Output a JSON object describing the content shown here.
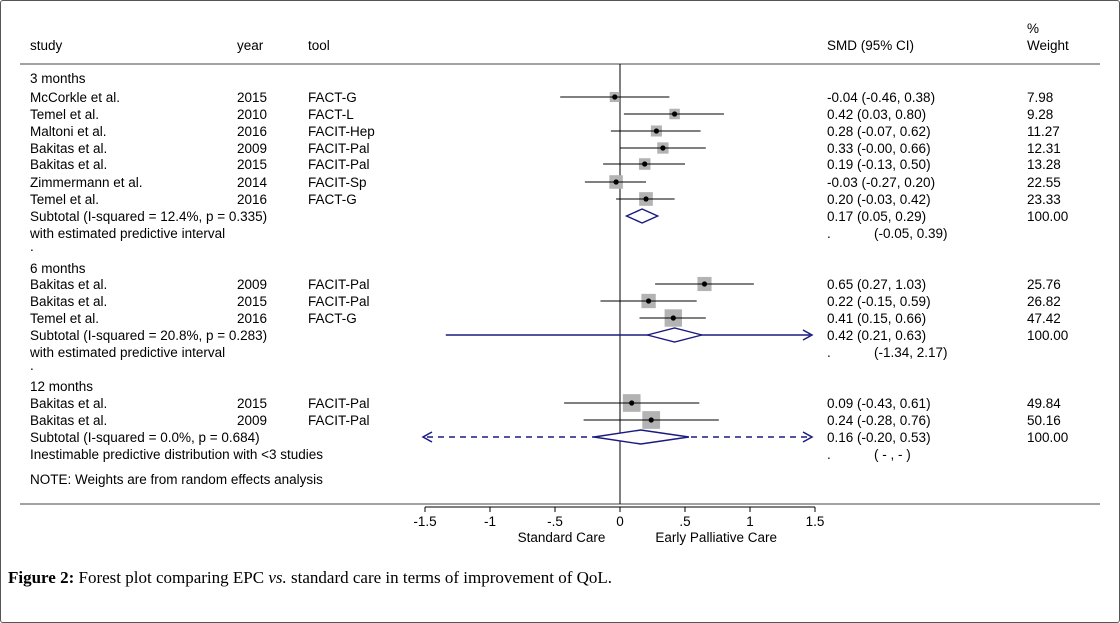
{
  "header": {
    "study": "study",
    "year": "year",
    "tool": "tool",
    "smd": "SMD (95% CI)",
    "weight_top": "%",
    "weight_bottom": "Weight"
  },
  "chart_data": {
    "type": "forest",
    "xlim": [
      -1.5,
      1.5
    ],
    "xticks": [
      "-1.5",
      "-1",
      "-.5",
      "0",
      ".5",
      "1",
      "1.5"
    ],
    "xtick_values": [
      -1.5,
      -1,
      -0.5,
      0,
      0.5,
      1,
      1.5
    ],
    "xlabel_left": "Standard Care",
    "xlabel_right": "Early Palliative Care",
    "note": "NOTE: Weights are from random effects analysis",
    "colors": {
      "study": "#000000",
      "box": "#b3b3b3",
      "pooled": "#1a1a80"
    },
    "rows": [
      {
        "kind": "header",
        "text": "3 months"
      },
      {
        "kind": "study",
        "study": "McCorkle et al.",
        "year": "2015",
        "tool": "FACT-G",
        "est": -0.04,
        "lo": -0.46,
        "hi": 0.38,
        "ci_text": "-0.04 (-0.46, 0.38)",
        "weight": "7.98"
      },
      {
        "kind": "study",
        "study": "Temel et al.",
        "year": "2010",
        "tool": "FACT-L",
        "est": 0.42,
        "lo": 0.03,
        "hi": 0.8,
        "ci_text": "0.42 (0.03, 0.80)",
        "weight": "9.28"
      },
      {
        "kind": "study",
        "study": "Maltoni et al.",
        "year": "2016",
        "tool": "FACIT-Hep",
        "est": 0.28,
        "lo": -0.07,
        "hi": 0.62,
        "ci_text": "0.28 (-0.07, 0.62)",
        "weight": "11.27"
      },
      {
        "kind": "study",
        "study": "Bakitas et al.",
        "year": "2009",
        "tool": "FACIT-Pal",
        "est": 0.33,
        "lo": -0.0,
        "hi": 0.66,
        "ci_text": "0.33 (-0.00, 0.66)",
        "weight": "12.31"
      },
      {
        "kind": "study",
        "study": "Bakitas et al.",
        "year": "2015",
        "tool": "FACIT-Pal",
        "est": 0.19,
        "lo": -0.13,
        "hi": 0.5,
        "ci_text": "0.19 (-0.13, 0.50)",
        "weight": "13.28"
      },
      {
        "kind": "study",
        "study": "Zimmermann et al.",
        "year": "2014",
        "tool": "FACIT-Sp",
        "est": -0.03,
        "lo": -0.27,
        "hi": 0.2,
        "ci_text": "-0.03 (-0.27, 0.20)",
        "weight": "22.55"
      },
      {
        "kind": "study",
        "study": "Temel et al.",
        "year": "2016",
        "tool": "FACT-G",
        "est": 0.2,
        "lo": -0.03,
        "hi": 0.42,
        "ci_text": "0.20 (-0.03, 0.42)",
        "weight": "23.33"
      },
      {
        "kind": "subtotal",
        "text": "Subtotal  (I-squared = 12.4%, p = 0.335)",
        "est": 0.17,
        "lo": 0.05,
        "hi": 0.29,
        "ci_text": "0.17 (0.05, 0.29)",
        "weight": "100.00"
      },
      {
        "kind": "predictive",
        "text": "with estimated predictive interval",
        "lo": -0.05,
        "hi": 0.39,
        "dot": ".",
        "ci_text": "(-0.05, 0.39)",
        "style": "none"
      },
      {
        "kind": "dot",
        "text": "."
      },
      {
        "kind": "header",
        "text": "6 months"
      },
      {
        "kind": "study",
        "study": "Bakitas et al.",
        "year": "2009",
        "tool": "FACIT-Pal",
        "est": 0.65,
        "lo": 0.27,
        "hi": 1.03,
        "ci_text": "0.65 (0.27, 1.03)",
        "weight": "25.76"
      },
      {
        "kind": "study",
        "study": "Bakitas et al.",
        "year": "2015",
        "tool": "FACIT-Pal",
        "est": 0.22,
        "lo": -0.15,
        "hi": 0.59,
        "ci_text": "0.22 (-0.15, 0.59)",
        "weight": "26.82"
      },
      {
        "kind": "study",
        "study": "Temel et al.",
        "year": "2016",
        "tool": "FACT-G",
        "est": 0.41,
        "lo": 0.15,
        "hi": 0.66,
        "ci_text": "0.41 (0.15, 0.66)",
        "weight": "47.42"
      },
      {
        "kind": "subtotal",
        "text": "Subtotal  (I-squared = 20.8%, p = 0.283)",
        "est": 0.42,
        "lo": 0.21,
        "hi": 0.63,
        "ci_text": "0.42 (0.21, 0.63)",
        "weight": "100.00",
        "pi_lo": -1.34,
        "pi_hi": 2.17,
        "pi_style": "solid"
      },
      {
        "kind": "predictive",
        "text": "with estimated predictive interval",
        "dot": ".",
        "ci_text": "(-1.34, 2.17)"
      },
      {
        "kind": "dot",
        "text": "."
      },
      {
        "kind": "header",
        "text": "12 months"
      },
      {
        "kind": "study",
        "study": "Bakitas et al.",
        "year": "2015",
        "tool": "FACIT-Pal",
        "est": 0.09,
        "lo": -0.43,
        "hi": 0.61,
        "ci_text": "0.09 (-0.43, 0.61)",
        "weight": "49.84"
      },
      {
        "kind": "study",
        "study": "Bakitas et al.",
        "year": "2009",
        "tool": "FACIT-Pal",
        "est": 0.24,
        "lo": -0.28,
        "hi": 0.76,
        "ci_text": "0.24 (-0.28, 0.76)",
        "weight": "50.16"
      },
      {
        "kind": "subtotal",
        "text": "Subtotal  (I-squared = 0.0%, p = 0.684)",
        "est": 0.16,
        "lo": -0.2,
        "hi": 0.53,
        "ci_text": "0.16 (-0.20, 0.53)",
        "weight": "100.00",
        "pi_style": "dashed"
      },
      {
        "kind": "predictive",
        "text": "Inestimable predictive distribution with <3 studies",
        "dot": ".",
        "ci_text": "( - , - )"
      }
    ]
  },
  "caption": {
    "label": "Figure 2:",
    "text_a": " Forest plot comparing EPC ",
    "text_em": "vs.",
    "text_b": " standard care in terms of improvement of QoL."
  }
}
